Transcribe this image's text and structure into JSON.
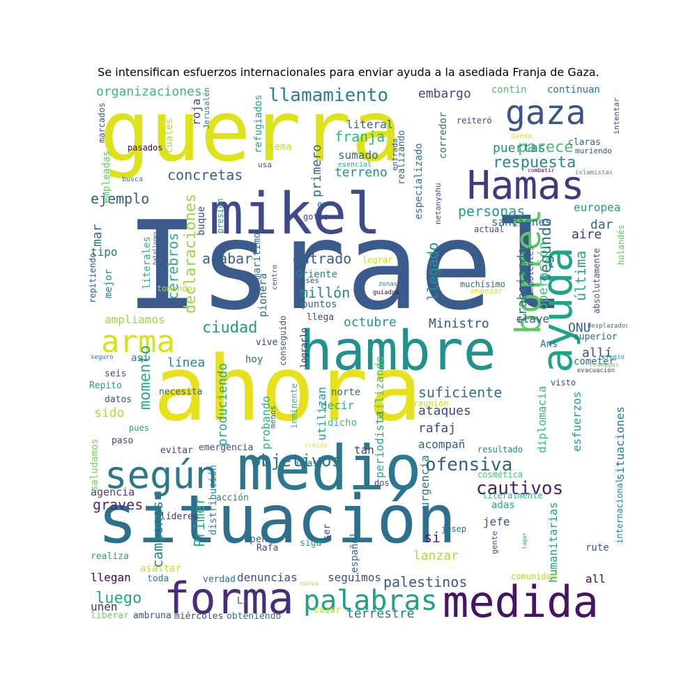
{
  "title": "Se intensifican esfuerzos internacionales para enviar ayuda a la asediada Franja de Gaza.",
  "words": [
    {
      "text": "Israel",
      "color": "#3b5b8c"
    },
    {
      "text": "ahora",
      "color": "#e6e11b"
    },
    {
      "text": "guerra",
      "color": "#dde318"
    },
    {
      "text": "situación",
      "color": "#2d708e"
    },
    {
      "text": "medio",
      "color": "#2a788e"
    },
    {
      "text": "hambre",
      "color": "#21918c"
    },
    {
      "text": "mikel",
      "color": "#3e4a89"
    },
    {
      "text": "forma",
      "color": "#472d7b"
    },
    {
      "text": "medida",
      "color": "#471365"
    },
    {
      "text": "Hamas",
      "color": "#453781"
    },
    {
      "text": "gaza",
      "color": "#3a548c"
    },
    {
      "text": "según",
      "color": "#2a788e"
    },
    {
      "text": "ayuda",
      "color": "#20a386"
    },
    {
      "text": "borrel",
      "color": "#5ec962"
    },
    {
      "text": "arma",
      "color": "#d8e219"
    },
    {
      "text": "palabras",
      "color": "#1fa188"
    },
    {
      "text": "objetivos",
      "color": "#2c728e"
    },
    {
      "text": "ofensiva",
      "color": "#355f8d"
    },
    {
      "text": "cautivos",
      "color": "#481f70"
    },
    {
      "text": "respuesta",
      "color": "#238a8d"
    },
    {
      "text": "llamamiento",
      "color": "#27808e"
    },
    {
      "text": "parece",
      "color": "#46c06f"
    },
    {
      "text": "concretas",
      "color": "#33638d"
    },
    {
      "text": "ejemplo",
      "color": "#365c8d"
    },
    {
      "text": "organizaciones",
      "color": "#3aba76"
    },
    {
      "text": "embargo",
      "color": "#3f4889"
    },
    {
      "text": "franja",
      "color": "#2fb47c"
    },
    {
      "text": "puertas",
      "color": "#23898e"
    },
    {
      "text": "personas",
      "color": "#1f9e89"
    },
    {
      "text": "ciudad",
      "color": "#1e9b8a"
    },
    {
      "text": "entrado",
      "color": "#355e8d"
    },
    {
      "text": "segundo",
      "color": "#2d718e"
    },
    {
      "text": "suficiente",
      "color": "#2c728e"
    },
    {
      "text": "luego",
      "color": "#22a884"
    },
    {
      "text": "palestinos",
      "color": "#39568c"
    },
    {
      "text": "Ministro",
      "color": "#3b528b"
    },
    {
      "text": "octubre",
      "color": "#1f9a8a"
    },
    {
      "text": "acabar",
      "color": "#33628d"
    },
    {
      "text": "millón",
      "color": "#25848e"
    },
    {
      "text": "momento",
      "color": "#2ab07f"
    },
    {
      "text": "línea",
      "color": "#24878e"
    },
    {
      "text": "declaraciones",
      "color": "#95d840"
    },
    {
      "text": "cerebros",
      "color": "#2db27d"
    },
    {
      "text": "graves",
      "color": "#482878"
    },
    {
      "text": "camiones",
      "color": "#24868e"
    },
    {
      "text": "Primer",
      "color": "#2ab07f"
    },
    {
      "text": "lanzar",
      "color": "#addc30"
    },
    {
      "text": "terrestre",
      "color": "#2a788e"
    },
    {
      "text": "seguimos",
      "color": "#3e4c8a"
    },
    {
      "text": "denuncias",
      "color": "#3d4e8a"
    },
    {
      "text": "rafaj",
      "color": "#3e4989"
    },
    {
      "text": "ataques",
      "color": "#404588"
    },
    {
      "text": "acompañ",
      "color": "#365d8d"
    },
    {
      "text": "dar",
      "color": "#355f8d"
    },
    {
      "text": "aire",
      "color": "#46337e"
    },
    {
      "text": "última",
      "color": "#24aa83"
    },
    {
      "text": "operación",
      "color": "#3dbc74"
    },
    {
      "text": "trabajando",
      "color": "#2a768e"
    },
    {
      "text": "llegado",
      "color": "#1f958b"
    },
    {
      "text": "ONU",
      "color": "#33638d"
    },
    {
      "text": "allí",
      "color": "#3f4788"
    },
    {
      "text": "clave",
      "color": "#38598c"
    },
    {
      "text": "primero",
      "color": "#31668e"
    },
    {
      "text": "terreno",
      "color": "#21918c"
    },
    {
      "text": "sumado",
      "color": "#31688e"
    },
    {
      "text": "literal",
      "color": "#306a8e"
    },
    {
      "text": "europea",
      "color": "#1fa088"
    },
    {
      "text": "sanciones",
      "color": "#2c718e"
    },
    {
      "text": "mar",
      "color": "#306a8e"
    },
    {
      "text": "tipo",
      "color": "#2e6e8e"
    },
    {
      "text": "ampliamos",
      "color": "#9dd93b"
    },
    {
      "text": "sido",
      "color": "#b2dd2d"
    },
    {
      "text": "dicho",
      "color": "#3dbc74"
    },
    {
      "text": "decir",
      "color": "#2eb37c"
    },
    {
      "text": "norte",
      "color": "#2d708e"
    },
    {
      "text": "utilizan",
      "color": "#1fa188"
    },
    {
      "text": "utilizando",
      "color": "#4cc26c"
    },
    {
      "text": "produciendo",
      "color": "#22a785"
    },
    {
      "text": "probando",
      "color": "#2fb47c"
    },
    {
      "text": "tan",
      "color": "#414487"
    },
    {
      "text": "periodista",
      "color": "#25ac82"
    },
    {
      "text": "urgencia",
      "color": "#2b748e"
    },
    {
      "text": "diplomacia",
      "color": "#3aba76"
    },
    {
      "text": "esfuerzos",
      "color": "#1f9f88"
    },
    {
      "text": "situaciones",
      "color": "#29798e"
    },
    {
      "text": "humanitarias",
      "color": "#20a486"
    },
    {
      "text": "jefe",
      "color": "#3d4d8a"
    },
    {
      "text": "adas",
      "color": "#21a685"
    },
    {
      "text": "si",
      "color": "#482173"
    },
    {
      "text": "español",
      "color": "#306a8e"
    },
    {
      "text": "Open",
      "color": "#2e6d8e"
    },
    {
      "text": "llegan",
      "color": "#440154"
    },
    {
      "text": "unen",
      "color": "#46307e"
    },
    {
      "text": "liberar",
      "color": "#6ccd5a"
    },
    {
      "text": "ambruna",
      "color": "#3b528b"
    },
    {
      "text": "miércoles",
      "color": "#3e4a89"
    },
    {
      "text": "obteniendo",
      "color": "#2c738e"
    },
    {
      "text": "cazar",
      "color": "#b5de2b"
    },
    {
      "text": "Li",
      "color": "#3b528b"
    },
    {
      "text": "verdad",
      "color": "#2c718e"
    },
    {
      "text": "toda",
      "color": "#2a788e"
    },
    {
      "text": "asaltar",
      "color": "#c0df25"
    },
    {
      "text": "realiza",
      "color": "#1fa287"
    },
    {
      "text": "líderes",
      "color": "#46327e"
    },
    {
      "text": "acción",
      "color": "#23898e"
    },
    {
      "text": "evitar",
      "color": "#414487"
    },
    {
      "text": "emergencia",
      "color": "#3d4e8a"
    },
    {
      "text": "agencia",
      "color": "#433e85"
    },
    {
      "text": "saludamos",
      "color": "#7ad151"
    },
    {
      "text": "paso",
      "color": "#404688"
    },
    {
      "text": "pues",
      "color": "#20a386"
    },
    {
      "text": "datos",
      "color": "#3c508b"
    },
    {
      "text": "Repito",
      "color": "#1f9e89"
    },
    {
      "text": "seis",
      "color": "#3e4989"
    },
    {
      "text": "así",
      "color": "#2a788e"
    },
    {
      "text": "seguro",
      "color": "#2c728e"
    },
    {
      "text": "necesita",
      "color": "#32658e"
    },
    {
      "text": "conseguido",
      "color": "#39568c"
    },
    {
      "text": "lograrlo",
      "color": "#482475"
    },
    {
      "text": "hoy",
      "color": "#31688e"
    },
    {
      "text": "vive",
      "color": "#414487"
    },
    {
      "text": "inminente",
      "color": "#35b779"
    },
    {
      "text": "menos",
      "color": "#2d718e"
    },
    {
      "text": "distribución",
      "color": "#228c8d"
    },
    {
      "text": "unas",
      "color": "#2e6e8e"
    },
    {
      "text": "creído",
      "color": "#dde318"
    },
    {
      "text": "dos",
      "color": "#404588"
    },
    {
      "text": "cosmética",
      "color": "#4ac16d"
    },
    {
      "text": "resultado",
      "color": "#25858e"
    },
    {
      "text": "literalmente",
      "color": "#29af7f"
    },
    {
      "text": "josep",
      "color": "#2d708e"
    },
    {
      "text": "gente",
      "color": "#3b528b"
    },
    {
      "text": "lugar",
      "color": "#1f9a8a"
    },
    {
      "text": "rute",
      "color": "#3b528b"
    },
    {
      "text": "internacional",
      "color": "#26818e"
    },
    {
      "text": "visto",
      "color": "#3e4989"
    },
    {
      "text": "comunidad",
      "color": "#addc30"
    },
    {
      "text": "all",
      "color": "#440154"
    },
    {
      "text": "nueva",
      "color": "#b5de2b"
    },
    {
      "text": "siga",
      "color": "#20a386"
    },
    {
      "text": "ser",
      "color": "#433e85"
    },
    {
      "text": "Rafa",
      "color": "#3e4c8a"
    },
    {
      "text": "reunión",
      "color": "#c2df23"
    },
    {
      "text": "cometer",
      "color": "#2d708e"
    },
    {
      "text": "superior",
      "color": "#31688e"
    },
    {
      "text": "refugio",
      "color": "#1fa088"
    },
    {
      "text": "llamadas",
      "color": "#7ad151"
    },
    {
      "text": "evacuación",
      "color": "#433e85"
    },
    {
      "text": "desplazados",
      "color": "#2a788e"
    },
    {
      "text": "Ans",
      "color": "#2c728e"
    },
    {
      "text": "absolutamente",
      "color": "#3b528b"
    },
    {
      "text": "holandés",
      "color": "#5ec962"
    },
    {
      "text": "impotentes",
      "color": "#38598c"
    },
    {
      "text": "muchísimo",
      "color": "#306a8e"
    },
    {
      "text": "empezar",
      "color": "#dde318"
    },
    {
      "text": "actual",
      "color": "#3e4a89"
    },
    {
      "text": "zonas",
      "color": "#2a788e"
    },
    {
      "text": "guiados",
      "color": "#440154"
    },
    {
      "text": "meses",
      "color": "#3b528b"
    },
    {
      "text": "lograr",
      "color": "#c0df25"
    },
    {
      "text": "Oriente",
      "color": "#25848e"
    },
    {
      "text": "puntos",
      "color": "#2e6e8e"
    },
    {
      "text": "llega",
      "color": "#3e4a89"
    },
    {
      "text": "pionera",
      "color": "#31688e"
    },
    {
      "text": "centro",
      "color": "#3b528b"
    },
    {
      "text": "marítimo",
      "color": "#2d708e"
    },
    {
      "text": "goteo",
      "color": "#3e4989"
    },
    {
      "text": "er",
      "color": "#2c728e"
    },
    {
      "text": "presión",
      "color": "#20a486"
    },
    {
      "text": "buque",
      "color": "#3e4c8a"
    },
    {
      "text": "literales",
      "color": "#2ab07f"
    },
    {
      "text": "mejor",
      "color": "#25858e"
    },
    {
      "text": "repitiendo",
      "color": "#3b528b"
    },
    {
      "text": "tomando",
      "color": "#addc30"
    },
    {
      "text": "batallones",
      "color": "#3e4989"
    },
    {
      "text": "empleadas",
      "color": "#5ec962"
    },
    {
      "text": "busca",
      "color": "#26818e"
    },
    {
      "text": "marcados",
      "color": "#3b528b"
    },
    {
      "text": "pasados",
      "color": "#440154"
    },
    {
      "text": "cuales",
      "color": "#addc30"
    },
    {
      "text": "Jerusalén",
      "color": "#2a788e"
    },
    {
      "text": "roja",
      "color": "#404588"
    },
    {
      "text": "refugiados",
      "color": "#1fa287"
    },
    {
      "text": "tema",
      "color": "#c2df23"
    },
    {
      "text": "usa",
      "color": "#3b528b"
    },
    {
      "text": "esencial",
      "color": "#21a685"
    },
    {
      "text": "entrada",
      "color": "#3e4a89"
    },
    {
      "text": "realizando",
      "color": "#31688e"
    },
    {
      "text": "especializado",
      "color": "#2c728e"
    },
    {
      "text": "netanyahu",
      "color": "#3b528b"
    },
    {
      "text": "corredor",
      "color": "#306a8e"
    },
    {
      "text": "reiteró",
      "color": "#433e85"
    },
    {
      "text": "contin",
      "color": "#4ac16d"
    },
    {
      "text": "continuan",
      "color": "#2a788e"
    },
    {
      "text": "intentar",
      "color": "#3e4989"
    },
    {
      "text": "queda",
      "color": "#dde318"
    },
    {
      "text": "claras",
      "color": "#306a8e"
    },
    {
      "text": "muriendo",
      "color": "#3e4c8a"
    },
    {
      "text": "combatir",
      "color": "#440154"
    },
    {
      "text": "islamistas",
      "color": "#20a386"
    }
  ]
}
